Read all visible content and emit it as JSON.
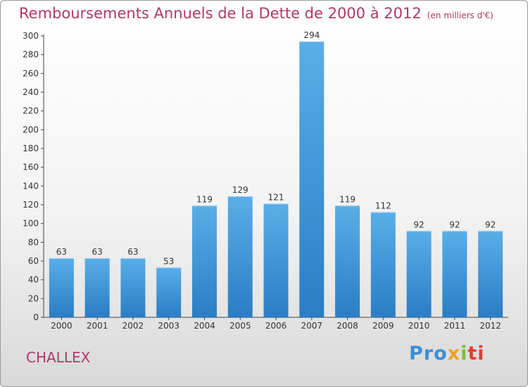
{
  "chart_data": {
    "type": "bar",
    "title": "Remboursements Annuels de la Dette de 2000 à 2012",
    "unit": "(en milliers d'€)",
    "xlabel": "",
    "ylabel": "",
    "categories": [
      "2000",
      "2001",
      "2002",
      "2003",
      "2004",
      "2005",
      "2006",
      "2007",
      "2008",
      "2009",
      "2010",
      "2011",
      "2012"
    ],
    "values": [
      63,
      63,
      63,
      53,
      119,
      129,
      121,
      294,
      119,
      112,
      92,
      92,
      92
    ],
    "ylim": [
      0,
      300
    ],
    "yticks": [
      0,
      20,
      40,
      60,
      80,
      100,
      120,
      140,
      160,
      180,
      200,
      220,
      240,
      260,
      280,
      300
    ],
    "grid": false,
    "legend": "none",
    "bar_color": "#3a8fd8"
  },
  "commune": "CHALLEX",
  "brand": {
    "parts": [
      "Pro",
      "x",
      "i",
      "ti"
    ]
  }
}
